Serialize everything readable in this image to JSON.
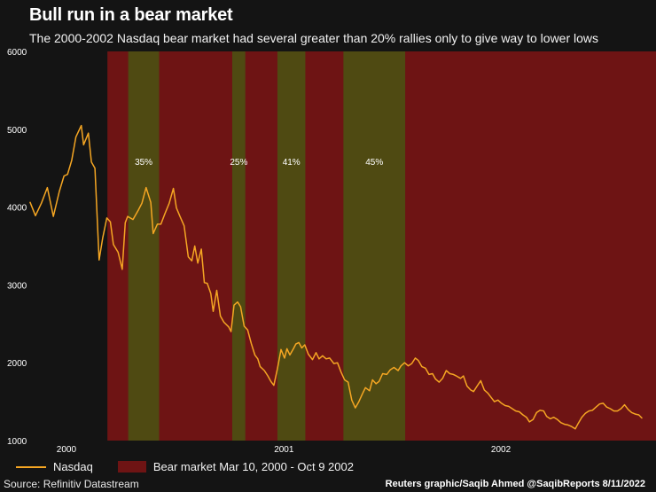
{
  "title": "Bull run in a bear market",
  "subtitle": "The 2000-2002 Nasdaq bear market had several greater than 20% rallies only to give way to lower lows",
  "source": "Source: Refinitiv Datastream",
  "credit": "Reuters graphic/Saqib Ahmed @SaqibReports 8/11/2022",
  "legend": {
    "series_label": "Nasdaq",
    "bear_label": "Bear market Mar 10, 2000 - Oct 9 2002"
  },
  "colors": {
    "line": "#f5a623",
    "bear_band": "#6e1414",
    "rally_band": "#4f4a12",
    "background": "#141414"
  },
  "chart_data": {
    "type": "line",
    "series": [
      {
        "name": "Nasdaq",
        "points": [
          [
            "1999-11-01",
            4060
          ],
          [
            "1999-11-10",
            3890
          ],
          [
            "1999-11-20",
            4050
          ],
          [
            "1999-11-30",
            4250
          ],
          [
            "1999-12-10",
            3880
          ],
          [
            "1999-12-20",
            4200
          ],
          [
            "1999-12-28",
            4400
          ],
          [
            "2000-01-03",
            4420
          ],
          [
            "2000-01-10",
            4600
          ],
          [
            "2000-01-17",
            4900
          ],
          [
            "2000-01-26",
            5048
          ],
          [
            "2000-01-30",
            4800
          ],
          [
            "2000-02-07",
            4950
          ],
          [
            "2000-02-12",
            4580
          ],
          [
            "2000-02-18",
            4500
          ],
          [
            "2000-02-25",
            3320
          ],
          [
            "2000-03-02",
            3600
          ],
          [
            "2000-03-09",
            3860
          ],
          [
            "2000-03-15",
            3810
          ],
          [
            "2000-03-20",
            3520
          ],
          [
            "2000-03-28",
            3420
          ],
          [
            "2000-04-04",
            3200
          ],
          [
            "2000-04-09",
            3800
          ],
          [
            "2000-04-13",
            3880
          ],
          [
            "2000-04-22",
            3840
          ],
          [
            "2000-05-01",
            3960
          ],
          [
            "2000-05-07",
            4050
          ],
          [
            "2000-05-14",
            4250
          ],
          [
            "2000-05-22",
            4060
          ],
          [
            "2000-05-26",
            3660
          ],
          [
            "2000-06-02",
            3780
          ],
          [
            "2000-06-08",
            3780
          ],
          [
            "2000-06-15",
            3920
          ],
          [
            "2000-06-22",
            4050
          ],
          [
            "2000-06-29",
            4240
          ],
          [
            "2000-07-04",
            3990
          ],
          [
            "2000-07-10",
            3880
          ],
          [
            "2000-07-17",
            3760
          ],
          [
            "2000-07-24",
            3360
          ],
          [
            "2000-07-30",
            3310
          ],
          [
            "2000-08-04",
            3500
          ],
          [
            "2000-08-09",
            3280
          ],
          [
            "2000-08-15",
            3460
          ],
          [
            "2000-08-20",
            3030
          ],
          [
            "2000-08-25",
            3020
          ],
          [
            "2000-08-31",
            2890
          ],
          [
            "2000-09-04",
            2660
          ],
          [
            "2000-09-10",
            2930
          ],
          [
            "2000-09-16",
            2600
          ],
          [
            "2000-09-22",
            2520
          ],
          [
            "2000-09-30",
            2460
          ],
          [
            "2000-10-04",
            2400
          ],
          [
            "2000-10-09",
            2740
          ],
          [
            "2000-10-15",
            2780
          ],
          [
            "2000-10-20",
            2720
          ],
          [
            "2000-10-26",
            2470
          ],
          [
            "2000-11-01",
            2420
          ],
          [
            "2000-11-07",
            2250
          ],
          [
            "2000-11-13",
            2100
          ],
          [
            "2000-11-18",
            2050
          ],
          [
            "2000-11-22",
            1950
          ],
          [
            "2000-11-29",
            1900
          ],
          [
            "2000-12-05",
            1830
          ],
          [
            "2000-12-10",
            1760
          ],
          [
            "2000-12-15",
            1710
          ],
          [
            "2000-12-21",
            1920
          ],
          [
            "2000-12-27",
            2170
          ],
          [
            "2001-01-02",
            2060
          ],
          [
            "2001-01-06",
            2180
          ],
          [
            "2001-01-11",
            2100
          ],
          [
            "2001-01-17",
            2180
          ],
          [
            "2001-01-21",
            2240
          ],
          [
            "2001-01-26",
            2260
          ],
          [
            "2001-01-31",
            2190
          ],
          [
            "2001-02-05",
            2230
          ],
          [
            "2001-02-11",
            2110
          ],
          [
            "2001-02-18",
            2040
          ],
          [
            "2001-02-24",
            2130
          ],
          [
            "2001-03-01",
            2050
          ],
          [
            "2001-03-07",
            2090
          ],
          [
            "2001-03-13",
            2050
          ],
          [
            "2001-03-19",
            2060
          ],
          [
            "2001-03-26",
            1990
          ],
          [
            "2001-04-01",
            2000
          ],
          [
            "2001-04-07",
            1880
          ],
          [
            "2001-04-13",
            1780
          ],
          [
            "2001-04-19",
            1750
          ],
          [
            "2001-04-25",
            1520
          ],
          [
            "2001-05-01",
            1420
          ],
          [
            "2001-05-07",
            1500
          ],
          [
            "2001-05-13",
            1600
          ],
          [
            "2001-05-18",
            1680
          ],
          [
            "2001-05-25",
            1640
          ],
          [
            "2001-05-30",
            1780
          ],
          [
            "2001-06-05",
            1730
          ],
          [
            "2001-06-10",
            1760
          ],
          [
            "2001-06-16",
            1860
          ],
          [
            "2001-06-23",
            1850
          ],
          [
            "2001-06-29",
            1910
          ],
          [
            "2001-07-05",
            1940
          ],
          [
            "2001-07-12",
            1900
          ],
          [
            "2001-07-17",
            1960
          ],
          [
            "2001-07-23",
            2000
          ],
          [
            "2001-07-29",
            1960
          ],
          [
            "2001-08-04",
            1990
          ],
          [
            "2001-08-10",
            2060
          ],
          [
            "2001-08-15",
            2030
          ],
          [
            "2001-08-21",
            1950
          ],
          [
            "2001-08-27",
            1930
          ],
          [
            "2001-09-02",
            1850
          ],
          [
            "2001-09-08",
            1860
          ],
          [
            "2001-09-13",
            1790
          ],
          [
            "2001-09-19",
            1750
          ],
          [
            "2001-09-25",
            1800
          ],
          [
            "2001-10-01",
            1900
          ],
          [
            "2001-10-07",
            1860
          ],
          [
            "2001-10-13",
            1850
          ],
          [
            "2001-10-18",
            1830
          ],
          [
            "2001-10-25",
            1800
          ],
          [
            "2001-10-30",
            1830
          ],
          [
            "2001-11-05",
            1700
          ],
          [
            "2001-11-11",
            1650
          ],
          [
            "2001-11-16",
            1630
          ],
          [
            "2001-11-22",
            1700
          ],
          [
            "2001-11-28",
            1770
          ],
          [
            "2001-12-04",
            1650
          ],
          [
            "2001-12-10",
            1610
          ],
          [
            "2001-12-16",
            1550
          ],
          [
            "2001-12-21",
            1500
          ],
          [
            "2001-12-27",
            1520
          ],
          [
            "2002-01-02",
            1480
          ],
          [
            "2002-01-08",
            1450
          ],
          [
            "2002-01-14",
            1440
          ],
          [
            "2002-01-20",
            1410
          ],
          [
            "2002-01-26",
            1380
          ],
          [
            "2002-02-01",
            1370
          ],
          [
            "2002-02-07",
            1330
          ],
          [
            "2002-02-13",
            1300
          ],
          [
            "2002-02-18",
            1240
          ],
          [
            "2002-02-24",
            1270
          ],
          [
            "2002-03-02",
            1360
          ],
          [
            "2002-03-08",
            1390
          ],
          [
            "2002-03-14",
            1380
          ],
          [
            "2002-03-19",
            1310
          ],
          [
            "2002-03-25",
            1280
          ],
          [
            "2002-03-31",
            1300
          ],
          [
            "2002-04-06",
            1270
          ],
          [
            "2002-04-12",
            1230
          ],
          [
            "2002-04-18",
            1210
          ],
          [
            "2002-04-24",
            1200
          ],
          [
            "2002-04-30",
            1180
          ],
          [
            "2002-05-06",
            1150
          ],
          [
            "2002-05-11",
            1220
          ],
          [
            "2002-05-17",
            1300
          ],
          [
            "2002-05-23",
            1350
          ],
          [
            "2002-05-29",
            1380
          ],
          [
            "2002-06-04",
            1390
          ],
          [
            "2002-06-10",
            1430
          ],
          [
            "2002-06-16",
            1470
          ],
          [
            "2002-06-22",
            1480
          ],
          [
            "2002-06-28",
            1430
          ],
          [
            "2002-07-04",
            1410
          ],
          [
            "2002-07-10",
            1380
          ],
          [
            "2002-07-16",
            1380
          ],
          [
            "2002-07-22",
            1410
          ],
          [
            "2002-07-28",
            1460
          ],
          [
            "2002-08-03",
            1400
          ],
          [
            "2002-08-09",
            1360
          ],
          [
            "2002-08-15",
            1340
          ],
          [
            "2002-08-21",
            1330
          ],
          [
            "2002-08-26",
            1290
          ]
        ]
      }
    ],
    "bear_market": {
      "start": "2000-03-10",
      "end": "2002-10-09"
    },
    "rally_bands": [
      {
        "start": "2000-04-14",
        "end": "2000-06-05",
        "label": "35%"
      },
      {
        "start": "2000-10-06",
        "end": "2000-10-28",
        "label": "25%"
      },
      {
        "start": "2000-12-21",
        "end": "2001-02-06",
        "label": "41%"
      },
      {
        "start": "2001-04-11",
        "end": "2001-07-24",
        "label": "45%"
      }
    ],
    "ylim": [
      1000,
      6000
    ],
    "yticks": [
      1000,
      2000,
      3000,
      4000,
      5000,
      6000
    ],
    "xticks": [
      {
        "date": "2000-01-01",
        "label": "2000"
      },
      {
        "date": "2001-01-01",
        "label": "2001"
      },
      {
        "date": "2002-01-01",
        "label": "2002"
      }
    ],
    "xlim": [
      "1999-11-01",
      "2002-09-01"
    ],
    "grid": false,
    "legend_position": "bottom-left"
  }
}
